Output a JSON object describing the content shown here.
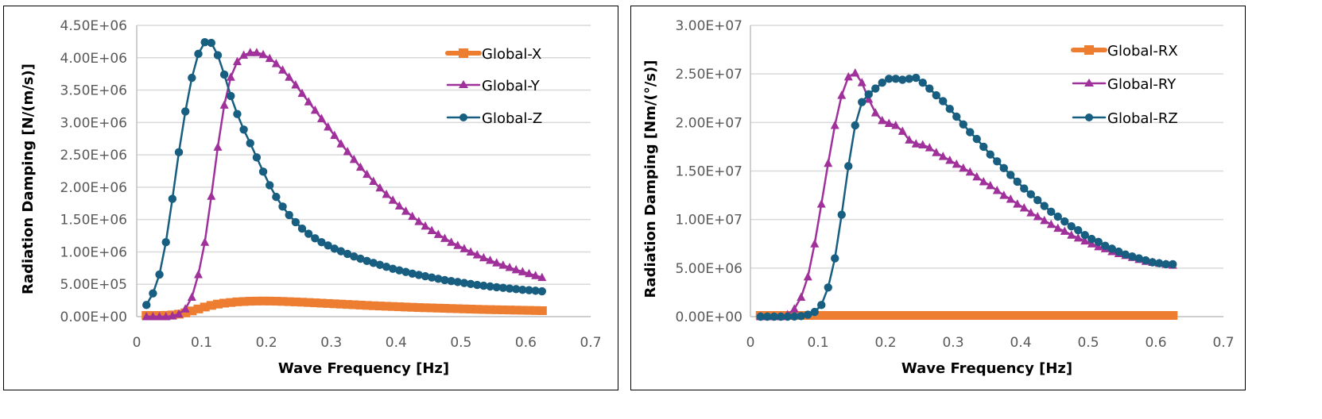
{
  "chart_data": [
    {
      "type": "line",
      "xlabel": "Wave Frequency [Hz]",
      "ylabel": "Radiation Damping [N/(m/s)]",
      "xlim": [
        0,
        0.7
      ],
      "ylim": [
        0,
        4500000
      ],
      "xticks": [
        "0",
        "0.1",
        "0.2",
        "0.3",
        "0.4",
        "0.5",
        "0.6",
        "0.7"
      ],
      "yticks": [
        "0.00E+00",
        "5.00E+05",
        "1.00E+06",
        "1.50E+06",
        "2.00E+06",
        "2.50E+06",
        "3.00E+06",
        "3.50E+06",
        "4.00E+06",
        "4.50E+06"
      ],
      "grid": true,
      "legend": "top-right",
      "x": {
        "start": 0.015,
        "step": 0.01,
        "count": 62
      },
      "series": [
        {
          "name": "Global-X",
          "color": "#ED7D31",
          "marker": "square",
          "values": [
            0,
            0,
            0,
            2000,
            8000,
            20000,
            40000,
            70000,
            100000,
            130000,
            155000,
            175000,
            190000,
            200000,
            210000,
            215000,
            220000,
            222000,
            223000,
            222000,
            220000,
            217000,
            213000,
            209000,
            205000,
            200000,
            195000,
            190000,
            185000,
            180000,
            175000,
            170000,
            165000,
            160000,
            155000,
            150000,
            146000,
            142000,
            138000,
            134000,
            130000,
            126000,
            122000,
            119000,
            116000,
            113000,
            110000,
            107000,
            104000,
            101000,
            98000,
            95000,
            92000,
            90000,
            88000,
            86000,
            84000,
            82000,
            80000,
            78000,
            76000,
            74000
          ]
        },
        {
          "name": "Global-Y",
          "color": "#A0319B",
          "marker": "triangle",
          "values": [
            0,
            0,
            0,
            0,
            10000,
            40000,
            120000,
            300000,
            650000,
            1150000,
            1860000,
            2620000,
            3270000,
            3700000,
            3940000,
            4040000,
            4080000,
            4080000,
            4050000,
            3990000,
            3910000,
            3810000,
            3700000,
            3580000,
            3450000,
            3320000,
            3190000,
            3060000,
            2930000,
            2800000,
            2670000,
            2550000,
            2430000,
            2310000,
            2200000,
            2090000,
            1990000,
            1890000,
            1800000,
            1710000,
            1630000,
            1550000,
            1470000,
            1400000,
            1330000,
            1270000,
            1210000,
            1150000,
            1100000,
            1050000,
            1000000,
            955000,
            910000,
            870000,
            830000,
            795000,
            760000,
            725000,
            695000,
            665000,
            635000,
            605000
          ]
        },
        {
          "name": "Global-Z",
          "color": "#175E80",
          "marker": "circle",
          "values": [
            180000,
            360000,
            650000,
            1150000,
            1820000,
            2540000,
            3170000,
            3690000,
            4060000,
            4240000,
            4230000,
            4040000,
            3740000,
            3410000,
            3130000,
            2890000,
            2680000,
            2460000,
            2240000,
            2030000,
            1850000,
            1700000,
            1570000,
            1460000,
            1360000,
            1280000,
            1210000,
            1150000,
            1100000,
            1050000,
            1010000,
            970000,
            930000,
            895000,
            860000,
            830000,
            800000,
            770000,
            740000,
            715000,
            690000,
            665000,
            645000,
            625000,
            605000,
            585000,
            565000,
            550000,
            535000,
            520000,
            505000,
            490000,
            478000,
            466000,
            455000,
            445000,
            435000,
            425000,
            415000,
            408000,
            400000,
            392000
          ]
        }
      ]
    },
    {
      "type": "line",
      "xlabel": "Wave Frequency [Hz]",
      "ylabel": "Radiation Damping [Nm/(°/s)]",
      "xlim": [
        0,
        0.7
      ],
      "ylim": [
        0,
        30000000
      ],
      "xticks": [
        "0",
        "0.1",
        "0.2",
        "0.3",
        "0.4",
        "0.5",
        "0.6",
        "0.7"
      ],
      "yticks": [
        "0.00E+00",
        "5.00E+06",
        "1.00E+07",
        "1.50E+07",
        "2.00E+07",
        "2.50E+07",
        "3.00E+07"
      ],
      "grid": true,
      "legend": "top-right",
      "x": {
        "start": 0.015,
        "step": 0.01,
        "count": 62
      },
      "series": [
        {
          "name": "Global-RX",
          "color": "#ED7D31",
          "marker": "square",
          "values": [
            0,
            0,
            0,
            0,
            0,
            0,
            0,
            0,
            0,
            0,
            0,
            0,
            0,
            0,
            0,
            0,
            0,
            0,
            0,
            0,
            0,
            0,
            0,
            0,
            0,
            0,
            0,
            0,
            0,
            0,
            0,
            0,
            0,
            0,
            0,
            0,
            0,
            0,
            0,
            0,
            0,
            0,
            0,
            0,
            0,
            0,
            0,
            0,
            0,
            0,
            0,
            0,
            0,
            0,
            0,
            0,
            0,
            0,
            0,
            0,
            0,
            0
          ]
        },
        {
          "name": "Global-RY",
          "color": "#A0319B",
          "marker": "triangle",
          "values": [
            0,
            0,
            0,
            0,
            200000,
            800000,
            2000000,
            4100000,
            7500000,
            11600000,
            15800000,
            19700000,
            22800000,
            24700000,
            25100000,
            24100000,
            22400000,
            21000000,
            20200000,
            19900000,
            19700000,
            19100000,
            18200000,
            17800000,
            17700000,
            17400000,
            16900000,
            16500000,
            16100000,
            15700000,
            15300000,
            14900000,
            14400000,
            13900000,
            13500000,
            13000000,
            12500000,
            12100000,
            11600000,
            11200000,
            10700000,
            10300000,
            9900000,
            9500000,
            9100000,
            8800000,
            8400000,
            8100000,
            7800000,
            7500000,
            7200000,
            7000000,
            6700000,
            6500000,
            6300000,
            6100000,
            5900000,
            5700000,
            5600000,
            5500000,
            5400000,
            5300000
          ]
        },
        {
          "name": "Global-RZ",
          "color": "#175E80",
          "marker": "circle",
          "values": [
            0,
            0,
            0,
            0,
            0,
            10000,
            60000,
            200000,
            480000,
            1200000,
            3000000,
            6000000,
            10500000,
            15500000,
            19700000,
            22100000,
            22900000,
            23500000,
            24100000,
            24500000,
            24500000,
            24400000,
            24500000,
            24600000,
            24100000,
            23500000,
            22800000,
            22200000,
            21400000,
            20600000,
            19800000,
            19000000,
            18300000,
            17500000,
            16700000,
            16000000,
            15300000,
            14600000,
            13900000,
            13200000,
            12600000,
            12000000,
            11400000,
            10800000,
            10300000,
            9800000,
            9300000,
            8900000,
            8400000,
            8000000,
            7700000,
            7300000,
            7000000,
            6700000,
            6400000,
            6200000,
            6000000,
            5800000,
            5600000,
            5500000,
            5400000,
            5400000
          ]
        }
      ]
    }
  ]
}
